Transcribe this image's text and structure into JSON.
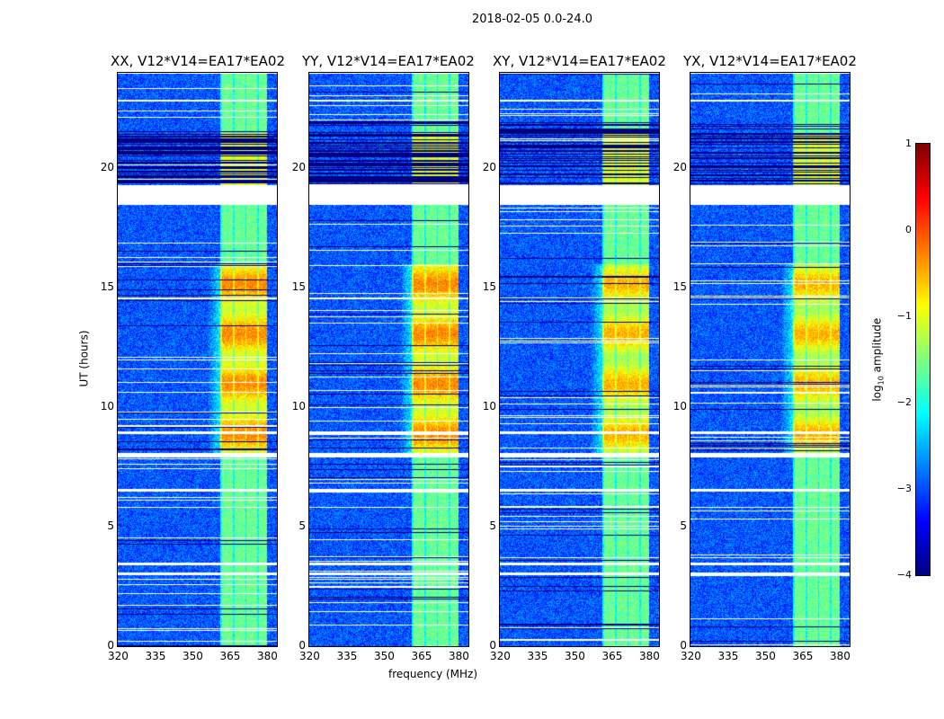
{
  "chart_data": {
    "type": "heatmap",
    "title": "2018-02-05 0.0-24.0",
    "xlabel": "frequency (MHz)",
    "ylabel": "UT (hours)",
    "xlim": [
      320,
      384
    ],
    "ylim": [
      0,
      24
    ],
    "xticks": [
      "320",
      "335",
      "350",
      "365",
      "380"
    ],
    "yticks": [
      "0",
      "5",
      "10",
      "15",
      "20"
    ],
    "panels": [
      {
        "title": "XX, V12*V14=EA17*EA02"
      },
      {
        "title": "YY, V12*V14=EA17*EA02"
      },
      {
        "title": "XY, V12*V14=EA17*EA02"
      },
      {
        "title": "YX, V12*V14=EA17*EA02"
      }
    ],
    "signal_band_mhz": [
      361,
      380
    ],
    "flagged_hours": [
      [
        18.5,
        19.3
      ],
      [
        7.9,
        8.1
      ],
      [
        8.9,
        9.0
      ],
      [
        6.5,
        6.6
      ],
      [
        22.8,
        22.9
      ],
      [
        3.0,
        3.1
      ],
      [
        3.4,
        3.5
      ],
      [
        5.8,
        5.85
      ]
    ],
    "colorbar": {
      "label": "log10 amplitude",
      "label_main": "log",
      "label_sub": "10",
      "label_rest": " amplitude",
      "range": [
        -4,
        1
      ],
      "ticks": [
        "1",
        "0",
        "−1",
        "−2",
        "−3",
        "−4"
      ],
      "colormap": "jet"
    }
  }
}
